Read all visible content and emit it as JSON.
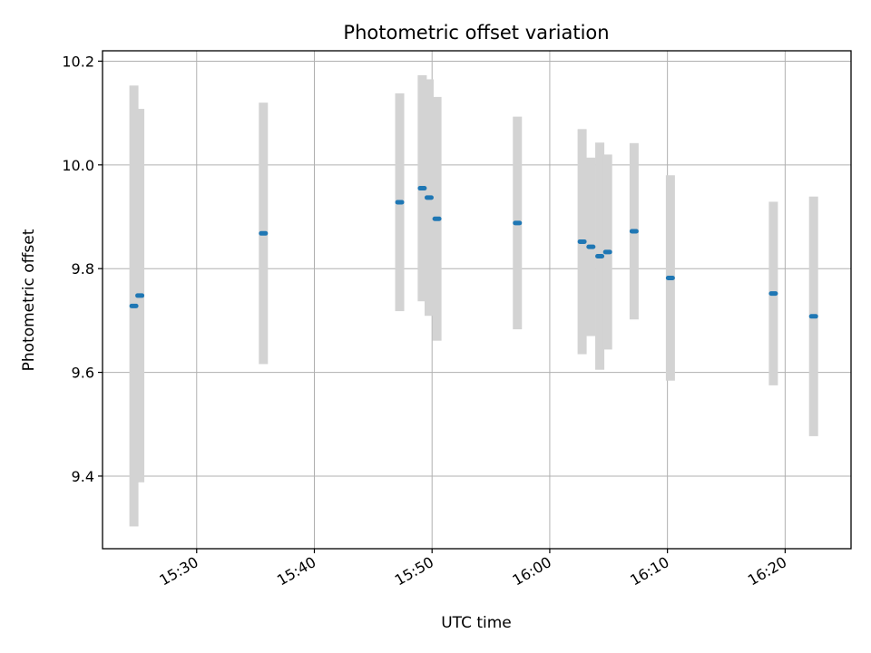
{
  "chart_data": {
    "type": "scatter",
    "title": "Photometric offset variation",
    "xlabel": "UTC time",
    "ylabel": "Photometric offset",
    "x_axis": {
      "type": "time",
      "range": [
        "15:22:00",
        "16:25:36"
      ]
    },
    "ylim": [
      9.26,
      10.22
    ],
    "x_ticks": [
      "15:30",
      "15:40",
      "15:50",
      "16:00",
      "16:10",
      "16:20"
    ],
    "y_ticks": [
      "9.4",
      "9.6",
      "9.8",
      "10.0",
      "10.2"
    ],
    "grid": true,
    "legend": null,
    "colors": {
      "marker": "#1f77b4",
      "errorbar": "#d3d3d3",
      "grid": "#b0b0b0",
      "axes": "#000000"
    },
    "series": [
      {
        "points": [
          {
            "time": "15:24:40",
            "y": 9.728,
            "yerr": 0.425
          },
          {
            "time": "15:25:10",
            "y": 9.748,
            "yerr": 0.36
          },
          {
            "time": "15:35:40",
            "y": 9.868,
            "yerr": 0.252
          },
          {
            "time": "15:47:15",
            "y": 9.928,
            "yerr": 0.21
          },
          {
            "time": "15:49:10",
            "y": 9.955,
            "yerr": 0.218
          },
          {
            "time": "15:49:45",
            "y": 9.937,
            "yerr": 0.228
          },
          {
            "time": "15:50:25",
            "y": 9.896,
            "yerr": 0.235
          },
          {
            "time": "15:57:15",
            "y": 9.888,
            "yerr": 0.205
          },
          {
            "time": "16:02:45",
            "y": 9.852,
            "yerr": 0.217
          },
          {
            "time": "16:03:30",
            "y": 9.842,
            "yerr": 0.172
          },
          {
            "time": "16:04:15",
            "y": 9.824,
            "yerr": 0.219
          },
          {
            "time": "16:04:55",
            "y": 9.832,
            "yerr": 0.188
          },
          {
            "time": "16:07:10",
            "y": 9.872,
            "yerr": 0.17
          },
          {
            "time": "16:10:15",
            "y": 9.782,
            "yerr": 0.198
          },
          {
            "time": "16:19:00",
            "y": 9.752,
            "yerr": 0.177
          },
          {
            "time": "16:22:25",
            "y": 9.708,
            "yerr": 0.231
          }
        ]
      }
    ]
  }
}
